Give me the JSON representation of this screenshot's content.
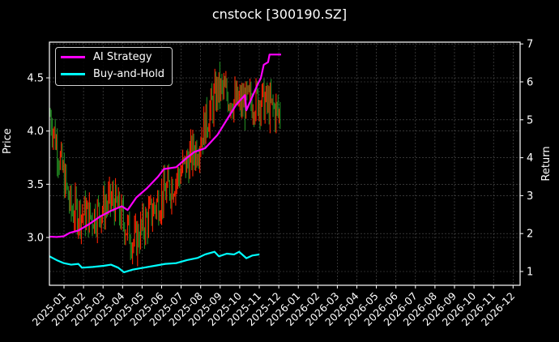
{
  "title": "cnstock [300190.SZ]",
  "legend": {
    "items": [
      {
        "label": "AI Strategy",
        "color": "#ff00ff"
      },
      {
        "label": "Buy-and-Hold",
        "color": "#00ffff"
      }
    ]
  },
  "axes": {
    "ylabel_left": "Price",
    "ylabel_right": "Return",
    "left_ticks": [
      "3.0",
      "3.5",
      "4.0",
      "4.5"
    ],
    "right_ticks": [
      "1",
      "2",
      "3",
      "4",
      "5",
      "6",
      "7"
    ],
    "x_ticks": [
      "2025-01",
      "2025-02",
      "2025-03",
      "2025-04",
      "2025-05",
      "2025-06",
      "2025-07",
      "2025-08",
      "2025-09",
      "2025-10",
      "2025-11",
      "2025-12",
      "2026-01",
      "2026-02",
      "2026-03",
      "2026-04",
      "2026-05",
      "2026-06",
      "2026-07",
      "2026-08",
      "2026-09",
      "2026-10",
      "2026-11",
      "2026-12"
    ]
  },
  "colors": {
    "background": "#000000",
    "up_candle": "#ff2200",
    "down_candle": "#228b22",
    "ai_strategy": "#ff00ff",
    "buy_and_hold": "#00ffff",
    "grid": "#555555"
  },
  "chart_data": {
    "type": "line",
    "title": "cnstock [300190.SZ]",
    "xlabel": "",
    "ylabel": "Price",
    "ylabel_right": "Return",
    "ylim_left": [
      2.62,
      4.82
    ],
    "ylim_right": [
      0.63,
      7.05
    ],
    "grid": true,
    "legend_position": "upper left",
    "x": [
      "2025-01",
      "2025-02",
      "2025-03",
      "2025-04",
      "2025-05",
      "2025-06",
      "2025-07",
      "2025-08",
      "2025-09",
      "2025-10",
      "2025-11",
      "2025-12"
    ],
    "series": [
      {
        "name": "Price (candles)",
        "axis": "left",
        "values": [
          4.15,
          3.25,
          3.2,
          3.35,
          2.95,
          3.3,
          3.55,
          3.85,
          4.4,
          4.25,
          4.3,
          4.15
        ]
      },
      {
        "name": "AI Strategy",
        "axis": "right",
        "values": [
          1.92,
          2.02,
          2.35,
          2.6,
          3.0,
          3.7,
          4.0,
          4.25,
          4.9,
          5.2,
          6.4,
          6.72
        ]
      },
      {
        "name": "Buy-and-Hold",
        "axis": "right",
        "values": [
          1.38,
          1.12,
          1.12,
          1.15,
          1.05,
          1.15,
          1.22,
          1.3,
          1.38,
          1.42,
          1.45,
          1.45
        ]
      }
    ],
    "ai_strategy_path": [
      [
        0,
        1.92
      ],
      [
        10,
        1.91
      ],
      [
        20,
        1.93
      ],
      [
        28,
        2.02
      ],
      [
        40,
        2.08
      ],
      [
        55,
        2.25
      ],
      [
        70,
        2.45
      ],
      [
        85,
        2.6
      ],
      [
        100,
        2.72
      ],
      [
        108,
        2.62
      ],
      [
        120,
        2.95
      ],
      [
        135,
        3.2
      ],
      [
        150,
        3.5
      ],
      [
        158,
        3.7
      ],
      [
        175,
        3.75
      ],
      [
        190,
        4.0
      ],
      [
        200,
        4.15
      ],
      [
        215,
        4.25
      ],
      [
        232,
        4.6
      ],
      [
        245,
        5.0
      ],
      [
        258,
        5.4
      ],
      [
        270,
        5.65
      ],
      [
        272,
        5.25
      ],
      [
        280,
        5.6
      ],
      [
        288,
        5.95
      ],
      [
        292,
        6.1
      ],
      [
        296,
        6.45
      ],
      [
        302,
        6.52
      ],
      [
        304,
        6.72
      ],
      [
        320,
        6.72
      ]
    ],
    "buy_and_hold_path": [
      [
        0,
        1.4
      ],
      [
        10,
        1.3
      ],
      [
        20,
        1.22
      ],
      [
        30,
        1.18
      ],
      [
        40,
        1.2
      ],
      [
        45,
        1.1
      ],
      [
        60,
        1.12
      ],
      [
        75,
        1.15
      ],
      [
        85,
        1.18
      ],
      [
        95,
        1.1
      ],
      [
        103,
        0.98
      ],
      [
        115,
        1.05
      ],
      [
        130,
        1.1
      ],
      [
        145,
        1.15
      ],
      [
        160,
        1.2
      ],
      [
        175,
        1.22
      ],
      [
        190,
        1.3
      ],
      [
        205,
        1.36
      ],
      [
        215,
        1.45
      ],
      [
        228,
        1.52
      ],
      [
        234,
        1.4
      ],
      [
        245,
        1.47
      ],
      [
        255,
        1.45
      ],
      [
        262,
        1.52
      ],
      [
        272,
        1.35
      ],
      [
        280,
        1.42
      ],
      [
        290,
        1.45
      ]
    ]
  }
}
